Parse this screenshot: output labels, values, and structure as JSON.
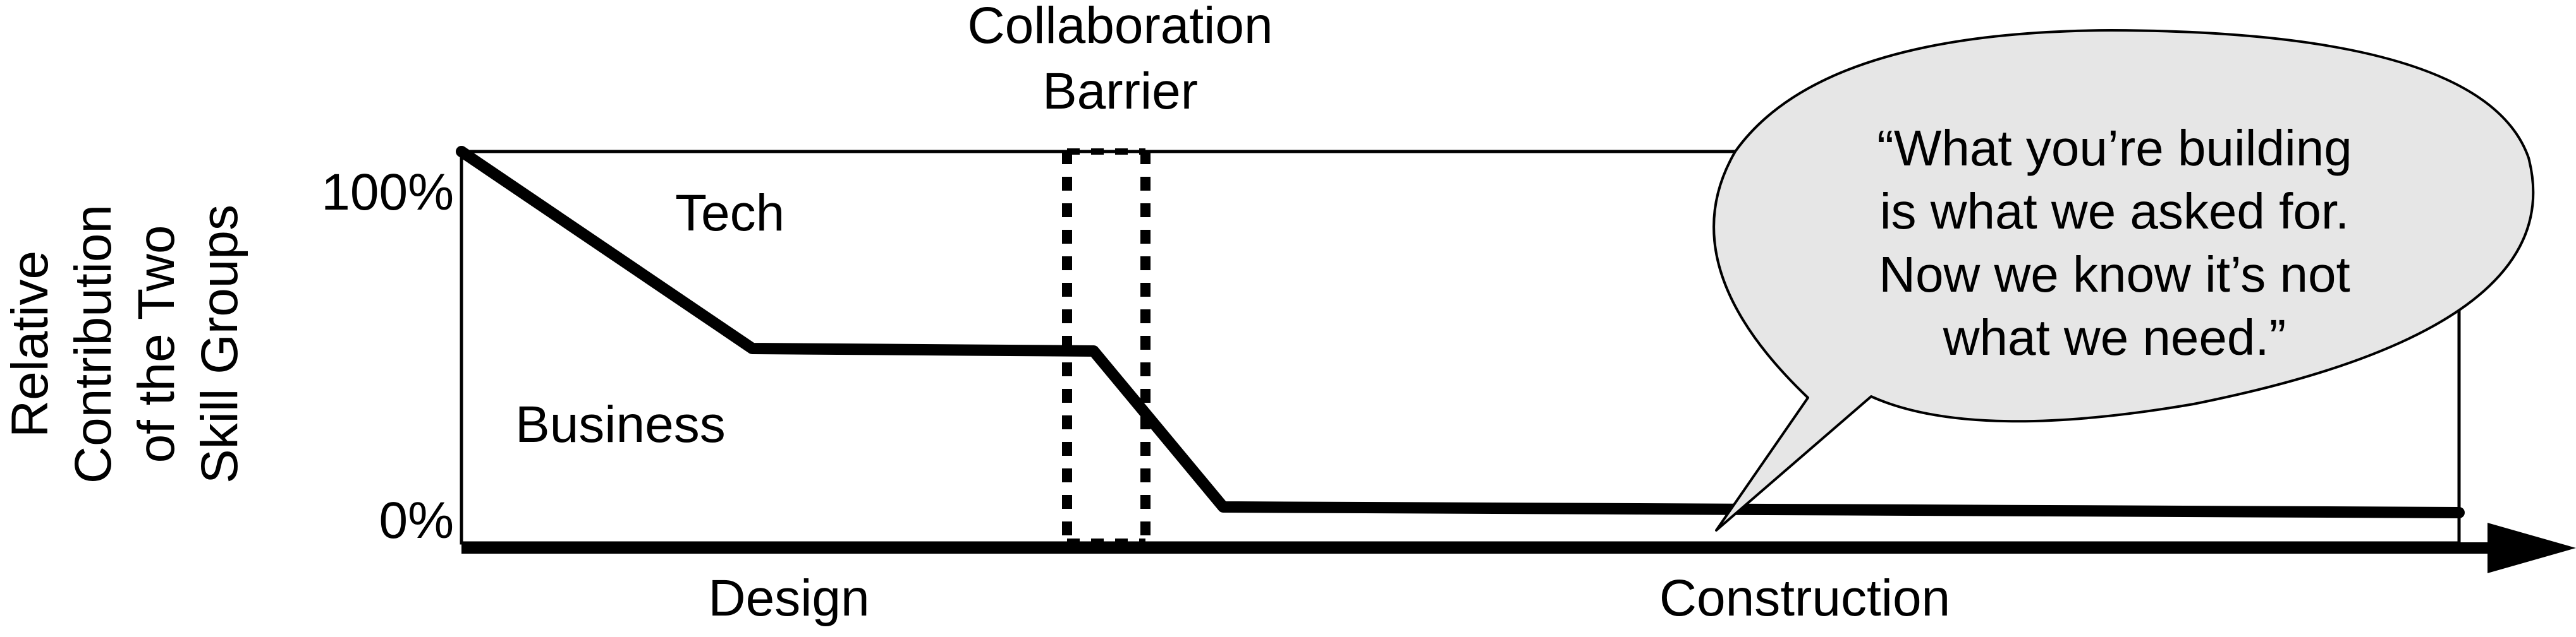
{
  "barrier": {
    "title_line1": "Collaboration",
    "title_line2": "Barrier"
  },
  "y_axis": {
    "label_line1": "Relative",
    "label_line2": "Contribution",
    "label_line3": "of the Two",
    "label_line4": "Skill Groups",
    "tick_top": "100%",
    "tick_bottom": "0%"
  },
  "regions": {
    "upper": "Tech",
    "lower": "Business"
  },
  "phases": {
    "left": "Design",
    "right": "Construction"
  },
  "speech_bubble": {
    "line1": "“What you’re building",
    "line2": "is what we asked for.",
    "line3": "Now we know it’s not",
    "line4": "what we need.”"
  },
  "colors": {
    "ink": "#000000",
    "bubble_fill": "#e6e6e6",
    "background": "#ffffff"
  },
  "icons": {
    "axis_arrow": "arrow-right-icon"
  }
}
